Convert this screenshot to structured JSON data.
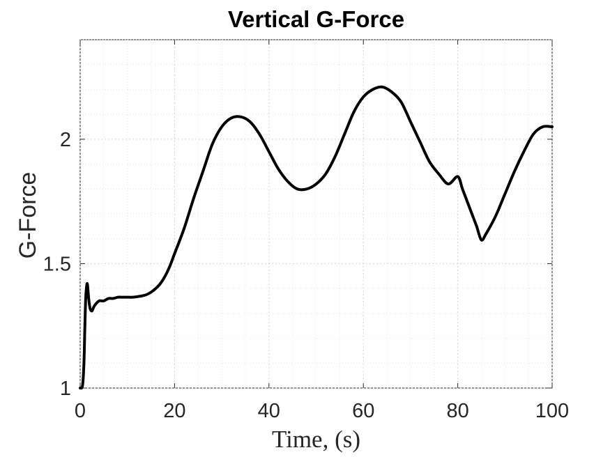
{
  "chart_data": {
    "type": "line",
    "title": "Vertical G-Force",
    "xlabel": "Time, (s)",
    "ylabel": "G-Force",
    "xlim": [
      0,
      100
    ],
    "ylim": [
      1,
      2.4
    ],
    "xticks": [
      0,
      20,
      40,
      60,
      80,
      100
    ],
    "yticks": [
      1,
      1.5,
      2
    ],
    "xtick_labels": [
      "0",
      "20",
      "40",
      "60",
      "80",
      "100"
    ],
    "ytick_labels": [
      "1",
      "1.5",
      "2"
    ],
    "grid": true,
    "minor_grid": true,
    "line_color": "#000000",
    "series": [
      {
        "x": [
          0,
          0.5,
          0.8,
          1.0,
          1.2,
          1.5,
          1.8,
          2.1,
          2.5,
          3,
          4,
          5,
          6,
          7,
          8,
          9,
          10,
          11,
          12,
          13,
          14,
          15,
          16,
          17,
          18,
          19,
          20,
          22,
          24,
          26,
          28,
          30,
          32,
          34,
          36,
          38,
          40,
          42,
          44,
          46,
          48,
          50,
          52,
          54,
          56,
          58,
          60,
          62,
          64,
          66,
          68,
          70,
          72,
          74,
          76,
          78,
          80,
          81,
          82,
          83,
          84,
          85,
          86,
          88,
          90,
          92,
          94,
          96,
          98,
          100
        ],
        "y": [
          1.0,
          1.01,
          1.1,
          1.25,
          1.37,
          1.42,
          1.36,
          1.32,
          1.31,
          1.33,
          1.35,
          1.35,
          1.36,
          1.36,
          1.365,
          1.365,
          1.365,
          1.365,
          1.367,
          1.37,
          1.375,
          1.385,
          1.4,
          1.42,
          1.45,
          1.49,
          1.54,
          1.64,
          1.76,
          1.87,
          1.98,
          2.05,
          2.085,
          2.09,
          2.07,
          2.02,
          1.95,
          1.88,
          1.83,
          1.8,
          1.8,
          1.82,
          1.86,
          1.93,
          2.02,
          2.11,
          2.17,
          2.2,
          2.21,
          2.19,
          2.15,
          2.07,
          1.99,
          1.91,
          1.86,
          1.82,
          1.85,
          1.8,
          1.75,
          1.7,
          1.65,
          1.595,
          1.62,
          1.69,
          1.78,
          1.87,
          1.95,
          2.02,
          2.05,
          2.05
        ]
      }
    ]
  }
}
